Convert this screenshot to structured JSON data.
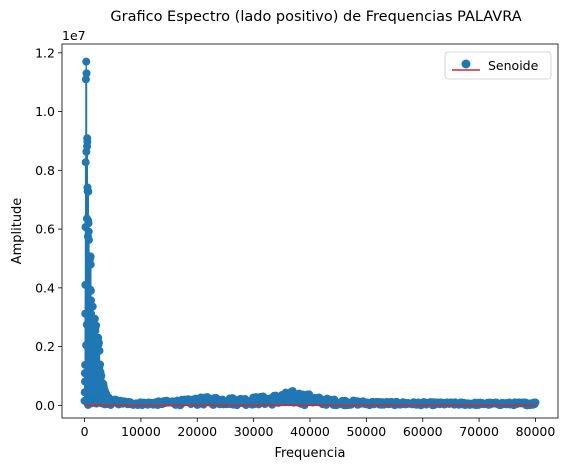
{
  "chart_data": {
    "type": "scatter",
    "title": "Grafico Espectro (lado positivo) de Frequencias PALAVRA",
    "xlabel": "Frequencia",
    "ylabel": "Amplitude",
    "y_offset_text": "1e7",
    "xlim": [
      -4000,
      84000
    ],
    "ylim": [
      -430000,
      12300000
    ],
    "x_ticks": [
      0,
      10000,
      20000,
      30000,
      40000,
      50000,
      60000,
      70000,
      80000
    ],
    "x_tick_labels": [
      "0",
      "10000",
      "20000",
      "30000",
      "40000",
      "50000",
      "60000",
      "70000",
      "80000"
    ],
    "y_ticks": [
      0,
      2000000,
      4000000,
      6000000,
      8000000,
      10000000,
      12000000
    ],
    "y_tick_labels": [
      "0.0",
      "0.2",
      "0.4",
      "0.6",
      "0.8",
      "1.0",
      "1.2"
    ],
    "legend_position": "top-right",
    "grid": false,
    "series": [
      {
        "name": "Senoide",
        "marker_color": "#1f77b4",
        "baseline_color": "#d62728",
        "style": "stem",
        "envelope": [
          [
            0,
            800000
          ],
          [
            100,
            1500000
          ],
          [
            200,
            10500000
          ],
          [
            300,
            11700000
          ],
          [
            400,
            10900000
          ],
          [
            500,
            10200000
          ],
          [
            600,
            8800000
          ],
          [
            700,
            7600000
          ],
          [
            800,
            6800000
          ],
          [
            900,
            6200000
          ],
          [
            1000,
            5800000
          ],
          [
            1100,
            5200000
          ],
          [
            1200,
            4600000
          ],
          [
            1300,
            4200000
          ],
          [
            1400,
            3800000
          ],
          [
            1500,
            3400000
          ],
          [
            1700,
            3000000
          ],
          [
            2000,
            3050000
          ],
          [
            2300,
            2700000
          ],
          [
            2500,
            2300000
          ],
          [
            2800,
            1500000
          ],
          [
            3200,
            900000
          ],
          [
            3600,
            500000
          ],
          [
            4000,
            320000
          ],
          [
            5000,
            220000
          ],
          [
            6000,
            180000
          ],
          [
            8000,
            130000
          ],
          [
            10000,
            110000
          ],
          [
            12000,
            120000
          ],
          [
            15000,
            170000
          ],
          [
            18000,
            200000
          ],
          [
            20000,
            260000
          ],
          [
            22000,
            290000
          ],
          [
            25000,
            270000
          ],
          [
            28000,
            260000
          ],
          [
            30000,
            290000
          ],
          [
            33000,
            330000
          ],
          [
            35000,
            420000
          ],
          [
            37000,
            500000
          ],
          [
            38000,
            460000
          ],
          [
            40000,
            380000
          ],
          [
            42000,
            260000
          ],
          [
            45000,
            190000
          ],
          [
            50000,
            140000
          ],
          [
            55000,
            120000
          ],
          [
            60000,
            110000
          ],
          [
            65000,
            105000
          ],
          [
            70000,
            100000
          ],
          [
            75000,
            100000
          ],
          [
            80000,
            110000
          ]
        ]
      }
    ]
  }
}
